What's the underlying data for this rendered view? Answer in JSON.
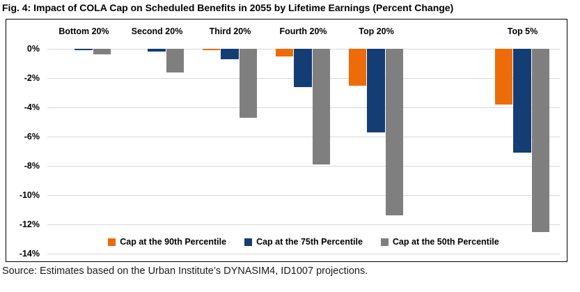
{
  "title": "Fig. 4: Impact of COLA Cap on Scheduled Benefits in 2055 by Lifetime Earnings (Percent Change)",
  "source": "Source: Estimates based on the Urban Institute’s DYNASIM4, ID1007 projections.",
  "colors": {
    "cap90": "#ee6b0a",
    "cap75": "#143d73",
    "cap50": "#7f7f7f",
    "gridline": "#d9d9d9",
    "border": "#000000"
  },
  "chart_data": {
    "type": "bar",
    "title": "Fig. 4: Impact of COLA Cap on Scheduled Benefits in 2055 by Lifetime Earnings (Percent Change)",
    "categories": [
      "Bottom 20%",
      "Second 20%",
      "Third 20%",
      "Fourth 20%",
      "Top 20%",
      "Top 5%"
    ],
    "series": [
      {
        "name": "Cap at the 90th Percentile",
        "color_key": "cap90",
        "values": [
          0.0,
          0.0,
          -0.1,
          -0.5,
          -2.5,
          -3.8
        ]
      },
      {
        "name": "Cap at the 75th Percentile",
        "color_key": "cap75",
        "values": [
          -0.1,
          -0.2,
          -0.7,
          -2.6,
          -5.7,
          -7.1
        ]
      },
      {
        "name": "Cap at the 50th Percentile",
        "color_key": "cap50",
        "values": [
          -0.4,
          -1.6,
          -4.7,
          -7.9,
          -11.4,
          -12.5
        ]
      }
    ],
    "y_ticks": [
      "0%",
      "-2%",
      "-4%",
      "-6%",
      "-8%",
      "-10%",
      "-12%",
      "-14%"
    ],
    "ylim": [
      -14,
      0
    ],
    "ylabel": "",
    "xlabel": "",
    "grid": true,
    "legend_position": "bottom-inside",
    "category_slots": [
      0,
      1,
      2,
      3,
      4,
      6
    ],
    "total_slots": 7,
    "note_layout": "Top 5% group is separated from the quintiles by one empty category slot"
  }
}
